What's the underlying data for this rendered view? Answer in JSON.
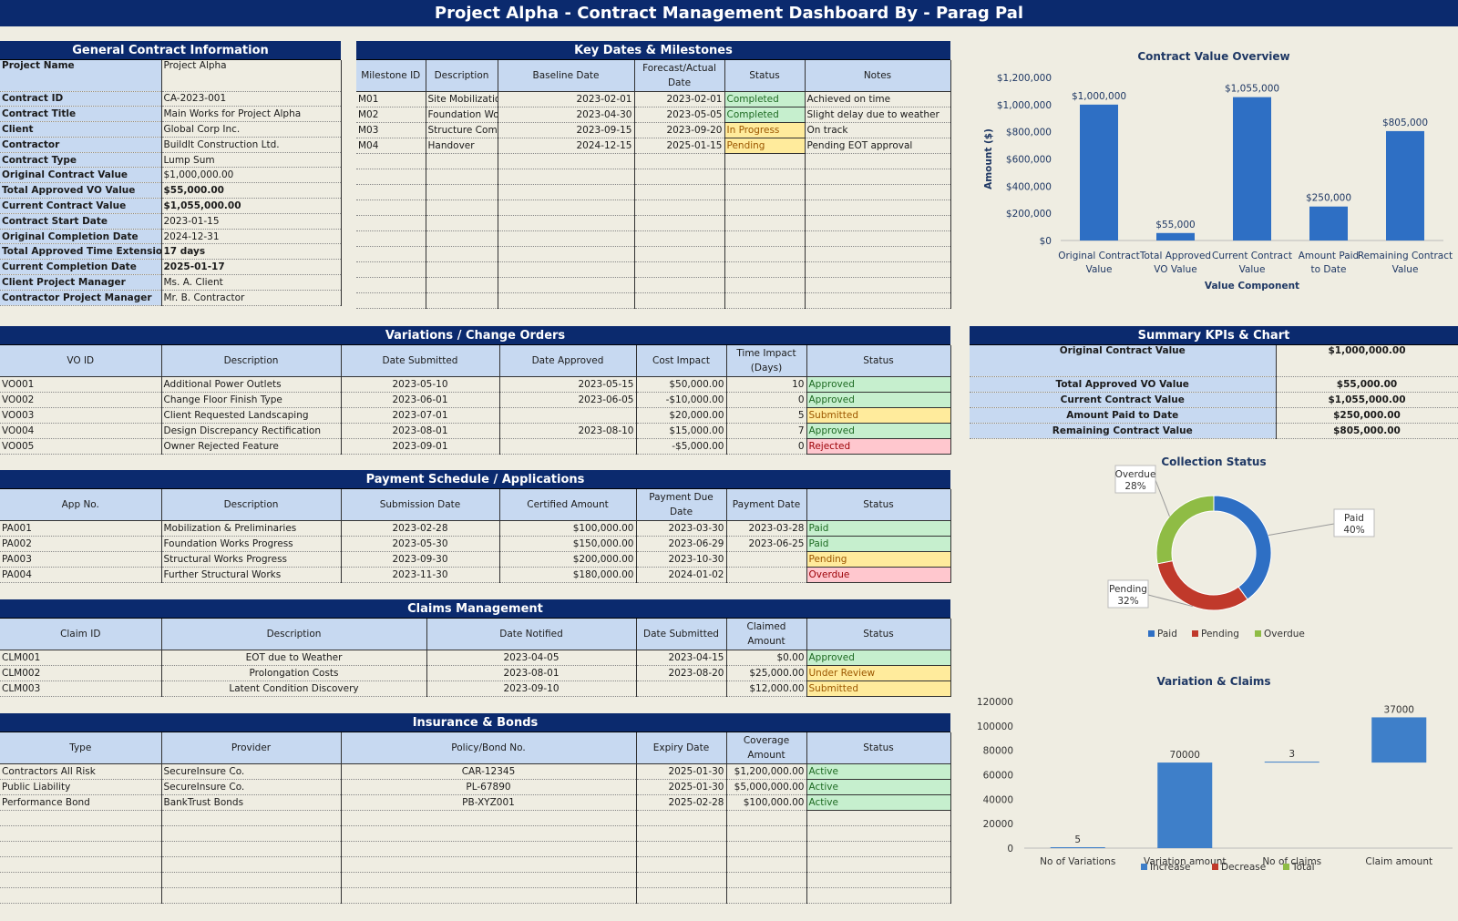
{
  "title": "Project Alpha - Contract Management Dashboard By - Parag Pal",
  "general": {
    "title": "General Contract Information",
    "rows": [
      {
        "label": "Project Name",
        "value": "Project Alpha",
        "bold": false,
        "tall": true
      },
      {
        "label": "Contract ID",
        "value": "CA-2023-001",
        "bold": false
      },
      {
        "label": "Contract Title",
        "value": "Main Works for Project Alpha",
        "bold": false
      },
      {
        "label": "Client",
        "value": "Global Corp Inc.",
        "bold": false
      },
      {
        "label": "Contractor",
        "value": "BuildIt Construction Ltd.",
        "bold": false
      },
      {
        "label": "Contract Type",
        "value": "Lump Sum",
        "bold": false
      },
      {
        "label": "Original Contract Value",
        "value": "$1,000,000.00",
        "bold": false
      },
      {
        "label": "Total Approved VO Value",
        "value": "$55,000.00",
        "bold": true
      },
      {
        "label": "Current Contract Value",
        "value": "$1,055,000.00",
        "bold": true
      },
      {
        "label": "Contract Start Date",
        "value": "2023-01-15",
        "bold": false
      },
      {
        "label": "Original Completion Date",
        "value": "2024-12-31",
        "bold": false
      },
      {
        "label": "Total Approved Time Extension",
        "value": "17 days",
        "bold": true
      },
      {
        "label": "Current Completion Date",
        "value": "2025-01-17",
        "bold": true
      },
      {
        "label": "Client Project Manager",
        "value": "Ms. A. Client",
        "bold": false
      },
      {
        "label": "Contractor Project Manager",
        "value": "Mr. B. Contractor",
        "bold": false
      }
    ]
  },
  "milestones": {
    "title": "Key Dates & Milestones",
    "headers": [
      "Milestone ID",
      "Description",
      "Baseline Date",
      "Forecast/Actual Date",
      "Status",
      "Notes"
    ],
    "rows": [
      [
        "M01",
        "Site Mobilization",
        "2023-02-01",
        "2023-02-01",
        "Completed",
        "Achieved on time"
      ],
      [
        "M02",
        "Foundation Works",
        "2023-04-30",
        "2023-05-05",
        "Completed",
        "Slight delay due to weather"
      ],
      [
        "M03",
        "Structure Complete",
        "2023-09-15",
        "2023-09-20",
        "In Progress",
        "On track"
      ],
      [
        "M04",
        "Handover",
        "2024-12-15",
        "2025-01-15",
        "Pending",
        "Pending EOT approval"
      ]
    ],
    "blank_rows": 10
  },
  "variations": {
    "title": "Variations / Change Orders",
    "headers": [
      "VO ID",
      "Description",
      "Date Submitted",
      "Date Approved",
      "Cost Impact",
      "Time Impact (Days)",
      "Status"
    ],
    "rows": [
      [
        "VO001",
        "Additional Power Outlets",
        "2023-05-10",
        "2023-05-15",
        "$50,000.00",
        "10",
        "Approved"
      ],
      [
        "VO002",
        "Change Floor Finish Type",
        "2023-06-01",
        "2023-06-05",
        "-$10,000.00",
        "0",
        "Approved"
      ],
      [
        "VO003",
        "Client Requested Landscaping",
        "2023-07-01",
        "",
        "$20,000.00",
        "5",
        "Submitted"
      ],
      [
        "VO004",
        "Design Discrepancy Rectification",
        "2023-08-01",
        "2023-08-10",
        "$15,000.00",
        "7",
        "Approved"
      ],
      [
        "VO005",
        "Owner Rejected Feature",
        "2023-09-01",
        "",
        "-$5,000.00",
        "0",
        "Rejected"
      ]
    ]
  },
  "payments": {
    "title": "Payment Schedule / Applications",
    "headers": [
      "App No.",
      "Description",
      "Submission Date",
      "Certified Amount",
      "Payment Due Date",
      "Payment Date",
      "Status"
    ],
    "rows": [
      [
        "PA001",
        "Mobilization & Preliminaries",
        "2023-02-28",
        "$100,000.00",
        "2023-03-30",
        "2023-03-28",
        "Paid"
      ],
      [
        "PA002",
        "Foundation Works Progress",
        "2023-05-30",
        "$150,000.00",
        "2023-06-29",
        "2023-06-25",
        "Paid"
      ],
      [
        "PA003",
        "Structural Works Progress",
        "2023-09-30",
        "$200,000.00",
        "2023-10-30",
        "",
        "Pending"
      ],
      [
        "PA004",
        "Further Structural Works",
        "2023-11-30",
        "$180,000.00",
        "2024-01-02",
        "",
        "Overdue"
      ]
    ]
  },
  "claims": {
    "title": "Claims Management",
    "headers": [
      "Claim ID",
      "Description",
      "Date Notified",
      "Date Submitted",
      "Claimed Amount",
      "Status"
    ],
    "rows": [
      [
        "CLM001",
        "EOT due to Weather",
        "2023-04-05",
        "2023-04-15",
        "$0.00",
        "Approved"
      ],
      [
        "CLM002",
        "Prolongation Costs",
        "2023-08-01",
        "2023-08-20",
        "$25,000.00",
        "Under Review"
      ],
      [
        "CLM003",
        "Latent Condition Discovery",
        "2023-09-10",
        "",
        "$12,000.00",
        "Submitted"
      ]
    ]
  },
  "insurance": {
    "title": "Insurance & Bonds",
    "headers": [
      "Type",
      "Provider",
      "Policy/Bond No.",
      "Expiry Date",
      "Coverage Amount",
      "Status"
    ],
    "rows": [
      [
        "Contractors All Risk",
        "SecureInsure Co.",
        "CAR-12345",
        "2025-01-30",
        "$1,200,000.00",
        "Active"
      ],
      [
        "Public Liability",
        "SecureInsure Co.",
        "PL-67890",
        "2025-01-30",
        "$5,000,000.00",
        "Active"
      ],
      [
        "Performance Bond",
        "BankTrust Bonds",
        "PB-XYZ001",
        "2025-02-28",
        "$100,000.00",
        "Active"
      ]
    ],
    "blank_rows": 6
  },
  "kpis": {
    "title": "Summary KPIs & Chart",
    "rows": [
      {
        "label": "Original Contract Value",
        "value": "$1,000,000.00",
        "tall": true
      },
      {
        "label": "Total Approved VO Value",
        "value": "$55,000.00"
      },
      {
        "label": "Current Contract Value",
        "value": "$1,055,000.00"
      },
      {
        "label": "Amount Paid to Date",
        "value": "$250,000.00"
      },
      {
        "label": "Remaining Contract Value",
        "value": "$805,000.00"
      }
    ]
  },
  "status_colors": {
    "green": "#c6efce",
    "yellow": "#ffeb9c",
    "red": "#ffc7ce"
  },
  "chart_data": [
    {
      "type": "bar",
      "title": "Contract Value Overview",
      "categories": [
        "Original Contract Value",
        "Total Approved VO Value",
        "Current Contract Value",
        "Amount Paid to Date",
        "Remaining Contract Value"
      ],
      "values": [
        1000000,
        55000,
        1055000,
        250000,
        805000
      ],
      "data_labels": [
        "$1,000,000",
        "$55,000",
        "$1,055,000",
        "$250,000",
        "$805,000"
      ],
      "xlabel": "Value Component",
      "ylabel": "Amount ($)",
      "ylim": [
        0,
        1200000
      ],
      "yticks": [
        "$0",
        "$200,000",
        "$400,000",
        "$600,000",
        "$800,000",
        "$1,000,000",
        "$1,200,000"
      ],
      "color": "#2e6fc4"
    },
    {
      "type": "pie",
      "title": "Collection Status",
      "labels": [
        "Paid",
        "Pending",
        "Overdue"
      ],
      "values": [
        40,
        32,
        28
      ],
      "data_labels": [
        "40%",
        "32%",
        "28%"
      ],
      "colors": [
        "#2e6fc4",
        "#c0392b",
        "#8fbc45"
      ],
      "legend": "bottom"
    },
    {
      "type": "bar",
      "title": "Variation & Claims",
      "categories": [
        "No of Variations",
        "Variation amount",
        "No of claims",
        "Claim amount"
      ],
      "series": [
        {
          "name": "Increase"
        },
        {
          "name": "Decrease"
        },
        {
          "name": "Total"
        }
      ],
      "bars": [
        {
          "base": 0,
          "top": 5,
          "label": "5"
        },
        {
          "base": 0,
          "top": 70000,
          "label": "70000"
        },
        {
          "base": 70000,
          "top": 70003,
          "label": "3"
        },
        {
          "base": 70000,
          "top": 107000,
          "label": "37000"
        }
      ],
      "ylim": [
        0,
        120000
      ],
      "yticks": [
        "0",
        "20000",
        "40000",
        "60000",
        "80000",
        "100000",
        "120000"
      ],
      "colors": [
        "#3e7fc9",
        "#c0392b",
        "#8fbc45"
      ],
      "legend": "bottom"
    }
  ]
}
